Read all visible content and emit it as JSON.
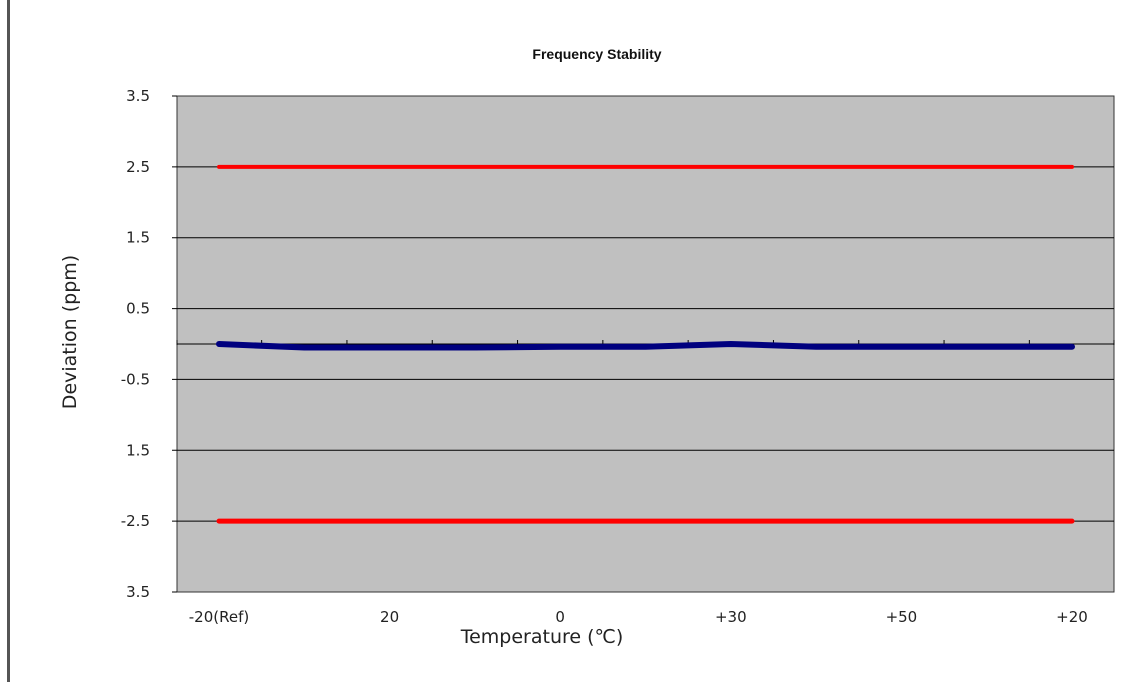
{
  "chart_data": {
    "type": "line",
    "title": "Frequency Stability",
    "xlabel": "Temperature (℃)",
    "ylabel": "Deviation (ppm)",
    "categories": [
      "-20(Ref)",
      "",
      "20",
      "",
      "0",
      "",
      "+30",
      "",
      "+50",
      "",
      "+20"
    ],
    "y_tick_labels": [
      "3.5",
      "2.5",
      "1.5",
      "0.5",
      "-0.5",
      "1.5",
      "-2.5",
      "3.5"
    ],
    "ylim": [
      -3.5,
      3.5
    ],
    "grid": "horizontal",
    "legend": "none",
    "series": [
      {
        "values": [
          0.0,
          -0.05,
          -0.05,
          -0.05,
          -0.04,
          -0.04,
          0.0,
          -0.04,
          -0.04,
          -0.04,
          -0.04
        ]
      },
      {
        "values": [
          2.5,
          2.5,
          2.5,
          2.5,
          2.5,
          2.5,
          2.5,
          2.5,
          2.5,
          2.5,
          2.5
        ]
      },
      {
        "values": [
          -2.5,
          -2.5,
          -2.5,
          -2.5,
          -2.5,
          -2.5,
          -2.5,
          -2.5,
          -2.5,
          -2.5,
          -2.5
        ]
      }
    ],
    "colors": {
      "plot_background": "#c0c0c0",
      "data": "#00007f",
      "limit": "#ff0000",
      "grid": "#000000"
    }
  }
}
